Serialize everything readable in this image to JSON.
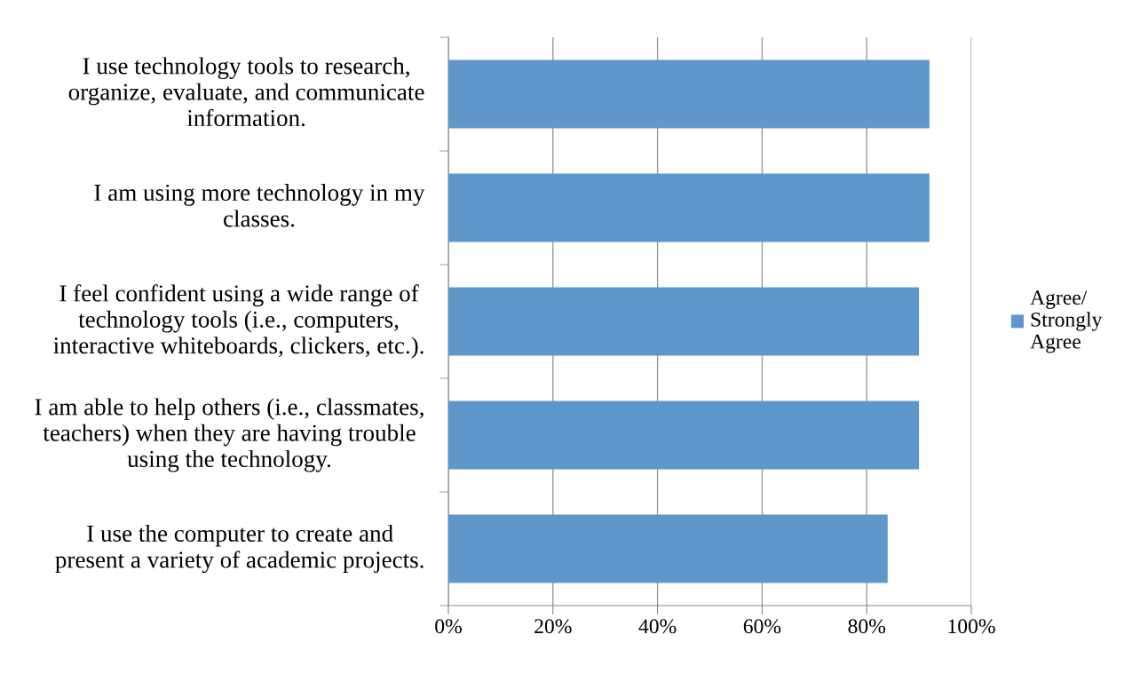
{
  "chart_data": {
    "type": "bar",
    "orientation": "horizontal",
    "categories": [
      "I use technology tools to research,\norganize, evaluate, and communicate\ninformation.",
      "I am using more technology in my\nclasses.",
      "I feel confident using a wide range of\ntechnology tools (i.e., computers,\ninteractive whiteboards, clickers, etc.).",
      "I am able to help others (i.e., classmates,\nteachers) when they are having trouble\nusing the technology.",
      "I use the computer to create and\npresent a variety of academic projects."
    ],
    "series": [
      {
        "name": "Agree/\nStrongly\nAgree",
        "color": "#6097cb",
        "values": [
          0.92,
          0.92,
          0.9,
          0.9,
          0.84
        ]
      }
    ],
    "xlim": [
      0,
      1
    ],
    "xticks": [
      {
        "value": 0,
        "label": "0%"
      },
      {
        "value": 0.2,
        "label": "20%"
      },
      {
        "value": 0.4,
        "label": "40%"
      },
      {
        "value": 0.6,
        "label": "60%"
      },
      {
        "value": 0.8,
        "label": "80%"
      },
      {
        "value": 1,
        "label": "100%"
      }
    ],
    "grid": "x",
    "legend": "right"
  }
}
